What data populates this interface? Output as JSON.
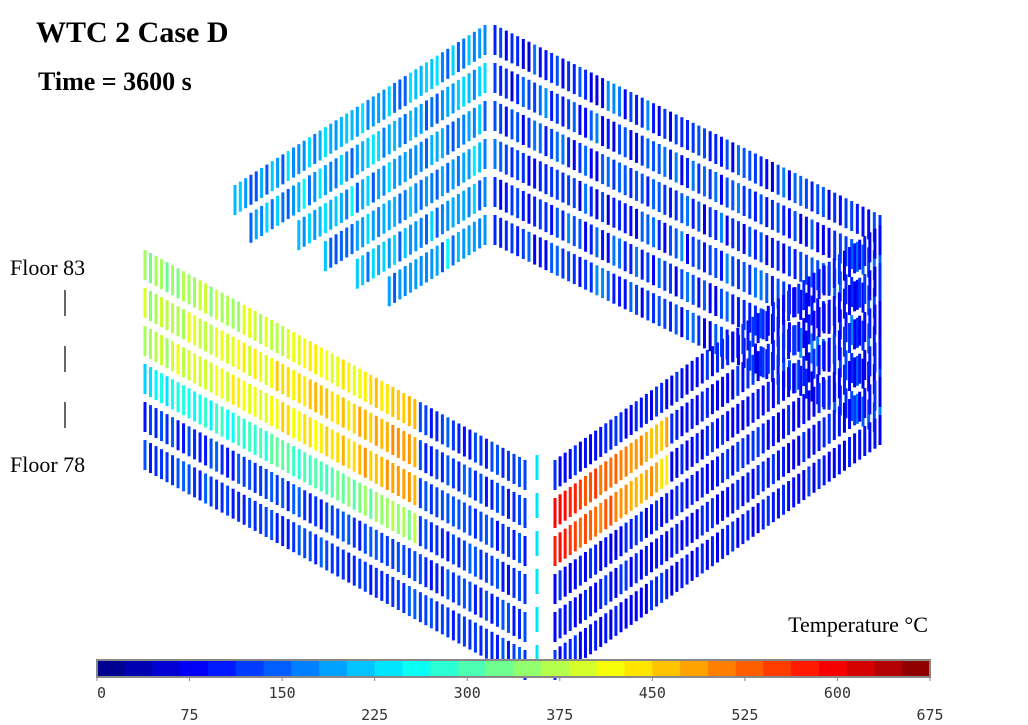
{
  "title": "WTC 2 Case D",
  "subtitle": "Time = 3600 s",
  "floor_labels": {
    "top": "Floor 83",
    "bottom": "Floor 78"
  },
  "colorbar": {
    "label": "Temperature  °C",
    "range": [
      0,
      675
    ],
    "ticks": [
      0,
      75,
      150,
      225,
      300,
      375,
      450,
      525,
      600,
      675
    ]
  }
}
